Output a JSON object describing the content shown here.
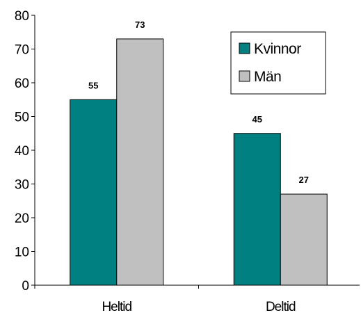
{
  "chart_data": {
    "type": "bar",
    "categories": [
      "Heltid",
      "Deltid"
    ],
    "series": [
      {
        "name": "Kvinnor",
        "values": [
          55,
          45
        ],
        "color": "#008080"
      },
      {
        "name": "Män",
        "values": [
          73,
          27
        ],
        "color": "#c0c0c0"
      }
    ],
    "title": "",
    "xlabel": "",
    "ylabel": "",
    "ylim": [
      0,
      80
    ],
    "yticks": [
      0,
      10,
      20,
      30,
      40,
      50,
      60,
      70,
      80
    ],
    "data_labels": true,
    "grid": false,
    "legend_position": "top-right",
    "legend_border": true
  }
}
